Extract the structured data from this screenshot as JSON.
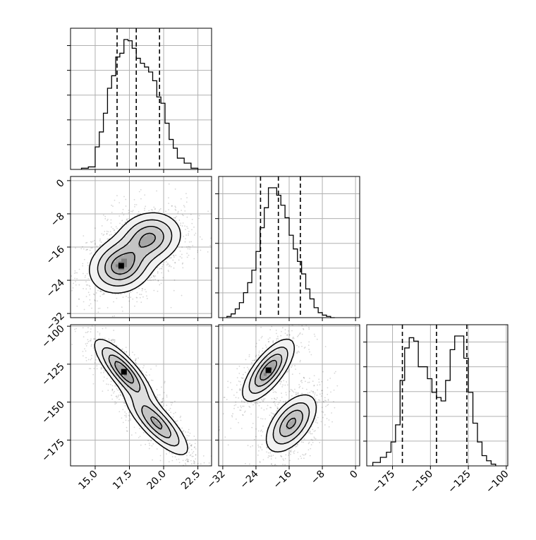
{
  "chart_data": {
    "type": "corner",
    "panels_layout": "3x3 lower-triangle",
    "grid": true,
    "parameters": [
      {
        "index": 0,
        "range": [
          13.2,
          23.5
        ],
        "ticks": [
          15.0,
          17.5,
          20.0,
          22.5
        ],
        "tick_labels": [
          "15.0",
          "17.5",
          "20.0",
          "22.5"
        ],
        "quantiles": [
          16.6,
          18.0,
          19.7
        ]
      },
      {
        "index": 1,
        "range": [
          -33,
          1
        ],
        "ticks": [
          -32,
          -24,
          -16,
          -8,
          0
        ],
        "tick_labels": [
          "−32",
          "−24",
          "−16",
          "−8",
          "0"
        ],
        "quantiles": [
          -22.9,
          -18.6,
          -13.3
        ]
      },
      {
        "index": 2,
        "range": [
          -192,
          -99
        ],
        "ticks": [
          -175,
          -150,
          -125,
          -100
        ],
        "tick_labels": [
          "−175",
          "−150",
          "−125",
          "−100"
        ],
        "quantiles": [
          -168.5,
          -146,
          -126
        ]
      }
    ],
    "histograms": [
      {
        "param": 0,
        "bin_edges": [
          14.0,
          14.5,
          15.0,
          15.3,
          15.6,
          15.9,
          16.2,
          16.5,
          16.8,
          17.1,
          17.4,
          17.7,
          18.0,
          18.3,
          18.6,
          18.9,
          19.2,
          19.5,
          19.8,
          20.1,
          20.4,
          20.7,
          21.0,
          21.5,
          22.0,
          22.5
        ],
        "counts": [
          1,
          2,
          18,
          30,
          45,
          65,
          75,
          90,
          93,
          104,
          103,
          97,
          89,
          85,
          82,
          78,
          71,
          58,
          53,
          37,
          24,
          17,
          9,
          5,
          1
        ]
      },
      {
        "param": 1,
        "bin_edges": [
          -31,
          -30,
          -29,
          -28,
          -27,
          -26,
          -25,
          -24,
          -23,
          -22,
          -21,
          -20,
          -19,
          -18,
          -17,
          -16,
          -15,
          -14,
          -13,
          -12,
          -11,
          -10,
          -9,
          -8,
          -7,
          -6,
          -5
        ],
        "counts": [
          1,
          3,
          7,
          12,
          20,
          28,
          38,
          53,
          72,
          88,
          104,
          104,
          98,
          90,
          80,
          66,
          55,
          45,
          35,
          23,
          15,
          8,
          4,
          2,
          1,
          0
        ]
      },
      {
        "param": 2,
        "bin_edges": [
          -188,
          -183,
          -179,
          -176,
          -173,
          -170,
          -167,
          -164,
          -161,
          -158,
          -155,
          -152,
          -149,
          -146,
          -143,
          -140,
          -137,
          -134,
          -131,
          -128,
          -125,
          -122,
          -119,
          -116,
          -113,
          -110,
          -107
        ],
        "counts": [
          2,
          5,
          8,
          14,
          24,
          50,
          69,
          75,
          73,
          58,
          58,
          51,
          43,
          40,
          38,
          50,
          68,
          76,
          76,
          63,
          43,
          25,
          14,
          6,
          3,
          1
        ]
      }
    ],
    "pairs": [
      {
        "x_param": 0,
        "y_param": 1,
        "modes": [
          {
            "center": [
              16.9,
              -20.5
            ],
            "sx": 1.2,
            "sy": 3.4,
            "rho": 0.15,
            "weight": 0.55
          },
          {
            "center": [
              19.0,
              -13.7
            ],
            "sx": 1.2,
            "sy": 3.2,
            "rho": 0.1,
            "weight": 0.45
          }
        ]
      },
      {
        "x_param": 0,
        "y_param": 2,
        "modes": [
          {
            "center": [
              17.1,
              -130.0
            ],
            "sx": 1.1,
            "sy": 11.0,
            "rho": -0.82,
            "weight": 0.5
          },
          {
            "center": [
              19.5,
              -164.0
            ],
            "sx": 1.2,
            "sy": 11.0,
            "rho": -0.8,
            "weight": 0.5
          }
        ]
      },
      {
        "x_param": 1,
        "y_param": 2,
        "modes": [
          {
            "center": [
              -21.0,
              -129.0
            ],
            "sx": 3.2,
            "sy": 10.5,
            "rho": 0.72,
            "weight": 0.5
          },
          {
            "center": [
              -15.5,
              -164.0
            ],
            "sx": 3.2,
            "sy": 10.0,
            "rho": 0.55,
            "weight": 0.5
          }
        ]
      }
    ]
  }
}
